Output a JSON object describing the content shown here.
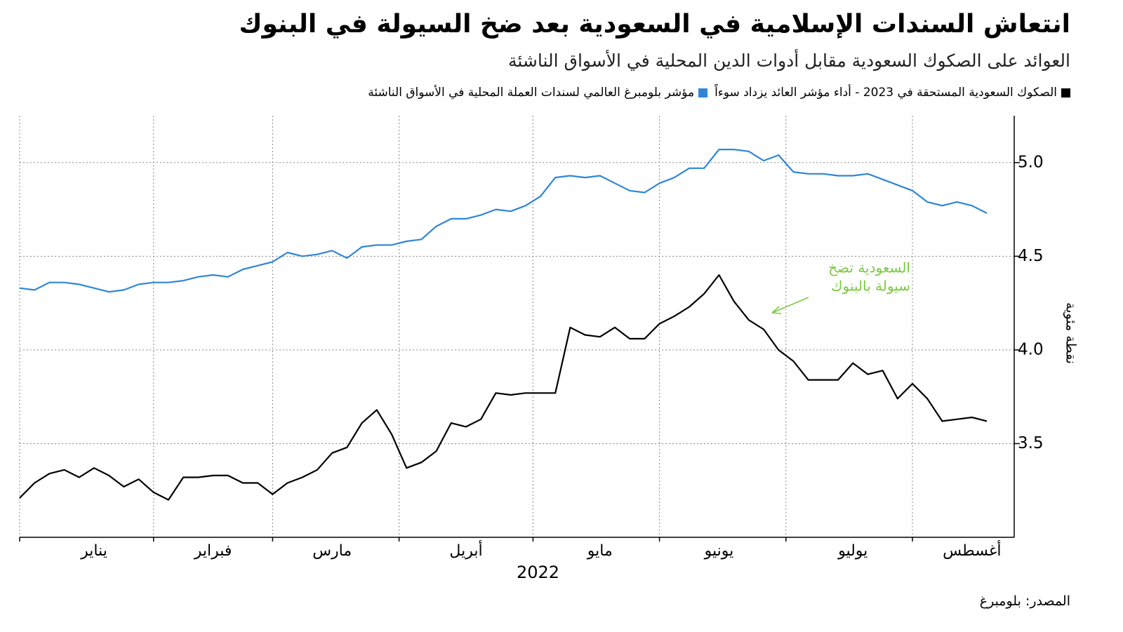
{
  "chart_data": {
    "type": "line",
    "title": "انتعاش  السندات الإسلامية في السعودية بعد ضخ السيولة في البنوك",
    "subtitle": "العوائد على الصكوك السعودية مقابل أدوات الدين المحلية في الأسواق الناشئة",
    "source": "المصدر: بلومبرغ",
    "x_label": "2022",
    "y_label": "نقطة مئوية",
    "categories": [
      null,
      null,
      null,
      null,
      null,
      "يناير",
      null,
      null,
      null,
      null,
      null,
      null,
      null,
      "فبراير",
      null,
      null,
      null,
      null,
      null,
      null,
      null,
      "مارس",
      null,
      null,
      null,
      null,
      null,
      null,
      null,
      null,
      "أبريل",
      null,
      null,
      null,
      null,
      null,
      null,
      null,
      null,
      "مايو",
      null,
      null,
      null,
      null,
      null,
      null,
      null,
      "يونيو",
      null,
      null,
      null,
      null,
      null,
      null,
      null,
      null,
      "يوليو",
      null,
      null,
      null,
      null,
      null,
      null,
      null,
      "أغسطس",
      null
    ],
    "series": [
      {
        "name": "الصكوك السعودية المستحقة في 2023  - أداء مؤشر العائد يزداد سوءاً",
        "color": "#000000",
        "values": [
          3.21,
          3.29,
          3.34,
          3.36,
          3.32,
          3.37,
          3.33,
          3.27,
          3.31,
          3.24,
          3.2,
          3.32,
          3.32,
          3.33,
          3.33,
          3.29,
          3.29,
          3.23,
          3.29,
          3.32,
          3.36,
          3.45,
          3.48,
          3.61,
          3.68,
          3.55,
          3.37,
          3.4,
          3.46,
          3.61,
          3.59,
          3.63,
          3.77,
          3.76,
          3.77,
          3.77,
          3.77,
          4.12,
          4.08,
          4.07,
          4.12,
          4.06,
          4.06,
          4.14,
          4.18,
          4.23,
          4.3,
          4.4,
          4.26,
          4.16,
          4.11,
          4.0,
          3.94,
          3.84,
          3.84,
          3.84,
          3.93,
          3.87,
          3.89,
          3.74,
          3.82,
          3.74,
          3.62,
          3.63,
          3.64,
          3.62
        ]
      },
      {
        "name": "مؤشر بلومبرغ العالمي لسندات العملة المحلية في الأسواق الناشئة",
        "color": "#2f86d6",
        "values": [
          4.33,
          4.32,
          4.36,
          4.36,
          4.35,
          4.33,
          4.31,
          4.32,
          4.35,
          4.36,
          4.36,
          4.37,
          4.39,
          4.4,
          4.39,
          4.43,
          4.45,
          4.47,
          4.52,
          4.5,
          4.51,
          4.53,
          4.49,
          4.55,
          4.56,
          4.56,
          4.58,
          4.59,
          4.66,
          4.7,
          4.7,
          4.72,
          4.75,
          4.74,
          4.77,
          4.82,
          4.92,
          4.93,
          4.92,
          4.93,
          4.89,
          4.85,
          4.84,
          4.89,
          4.92,
          4.97,
          4.97,
          5.07,
          5.07,
          5.06,
          5.01,
          5.04,
          4.95,
          4.94,
          4.94,
          4.93,
          4.93,
          4.94,
          4.91,
          4.88,
          4.85,
          4.79,
          4.77,
          4.79,
          4.77,
          4.73
        ]
      }
    ],
    "ylim": [
      3.0,
      5.25
    ],
    "yticks": [
      3.5,
      {
        "value": 4,
        "label": "4.0"
      },
      4.5,
      {
        "value": 5,
        "label": "5.0"
      }
    ],
    "grid": true,
    "annotations": [
      {
        "lines": [
          "السعودية تضخ",
          "سيولة بالبنوك"
        ],
        "color": "#7ac943"
      }
    ]
  }
}
